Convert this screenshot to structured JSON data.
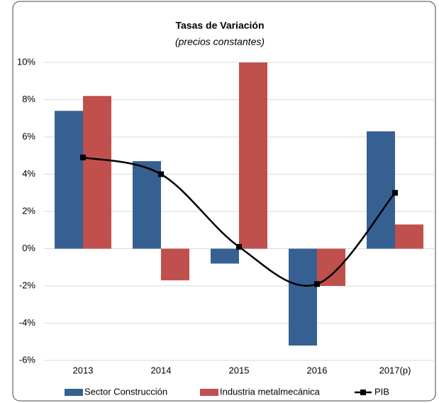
{
  "chart_data": {
    "type": "bar_line",
    "title": "Tasas de Variación",
    "subtitle": "(precios constantes)",
    "categories": [
      "2013",
      "2014",
      "2015",
      "2016",
      "2017(p)"
    ],
    "series": [
      {
        "name": "Sector Construcción",
        "type": "bar",
        "color": "#376092",
        "values": [
          7.4,
          4.7,
          -0.8,
          -5.2,
          6.3
        ]
      },
      {
        "name": "Industria metalmecánica",
        "type": "bar",
        "color": "#c0504d",
        "values": [
          8.2,
          -1.7,
          10.0,
          -2.0,
          1.3
        ]
      },
      {
        "name": "PIB",
        "type": "line",
        "color": "#000000",
        "values": [
          4.9,
          4.0,
          0.1,
          -1.9,
          3.0
        ]
      }
    ],
    "ylim": [
      -6,
      10
    ],
    "yticks": [
      {
        "value": -6,
        "label": "-6%"
      },
      {
        "value": -4,
        "label": "-4%"
      },
      {
        "value": -2,
        "label": "-2%"
      },
      {
        "value": 0,
        "label": "0%"
      },
      {
        "value": 2,
        "label": "2%"
      },
      {
        "value": 4,
        "label": "4%"
      },
      {
        "value": 6,
        "label": "6%"
      },
      {
        "value": 8,
        "label": "8%"
      },
      {
        "value": 10,
        "label": "10%"
      }
    ],
    "grid": true,
    "legend": "bottom"
  }
}
